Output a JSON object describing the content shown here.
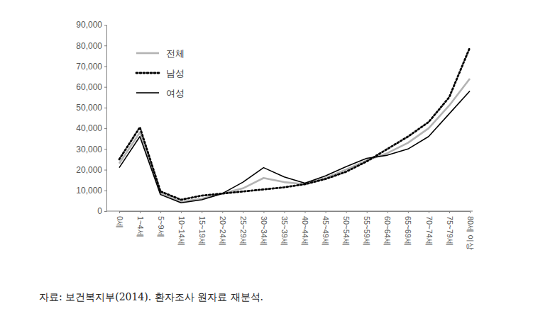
{
  "chart_data": {
    "type": "line",
    "categories": [
      "0세",
      "1~4세",
      "5~9세",
      "10~14세",
      "15~19세",
      "20~24세",
      "25~29세",
      "30~34세",
      "35~39세",
      "40~44세",
      "45~49세",
      "50~54세",
      "55~59세",
      "60~64세",
      "65~69세",
      "70~74세",
      "75~79세",
      "80세 이상"
    ],
    "series": [
      {
        "name": "전체",
        "color": "#b3b3b3",
        "line_style": "solid",
        "values": [
          23000,
          38000,
          8500,
          4500,
          6000,
          8500,
          11000,
          16000,
          14000,
          13000,
          16000,
          20000,
          24500,
          28000,
          33000,
          40000,
          51000,
          64000
        ]
      },
      {
        "name": "남성",
        "color": "#000000",
        "line_style": "dotted",
        "values": [
          25000,
          40500,
          9500,
          5500,
          7500,
          8500,
          9500,
          10500,
          11500,
          13000,
          15500,
          19000,
          24000,
          30000,
          36000,
          43000,
          55000,
          79000
        ]
      },
      {
        "name": "여성",
        "color": "#000000",
        "line_style": "solid",
        "values": [
          21000,
          36000,
          8000,
          4000,
          5500,
          8500,
          14000,
          21000,
          16500,
          13500,
          17000,
          21500,
          25500,
          27000,
          30000,
          36000,
          47000,
          58000
        ]
      }
    ],
    "ylim": [
      0,
      90000
    ],
    "yticks": [
      0,
      {
        "value": 10000,
        "label": "10,000"
      },
      {
        "value": 20000,
        "label": "20,000"
      },
      {
        "value": 30000,
        "label": "30,000"
      },
      {
        "value": 40000,
        "label": "40,000"
      },
      {
        "value": 50000,
        "label": "50,000"
      },
      {
        "value": 60000,
        "label": "60,000"
      },
      {
        "value": 70000,
        "label": "70,000"
      },
      {
        "value": 80000,
        "label": "80,000"
      },
      {
        "value": 90000,
        "label": "90,000"
      }
    ],
    "grid": false,
    "legend": "upper left",
    "source": "자료: 보건복지부(2014). 환자조사 원자료 재분석."
  }
}
